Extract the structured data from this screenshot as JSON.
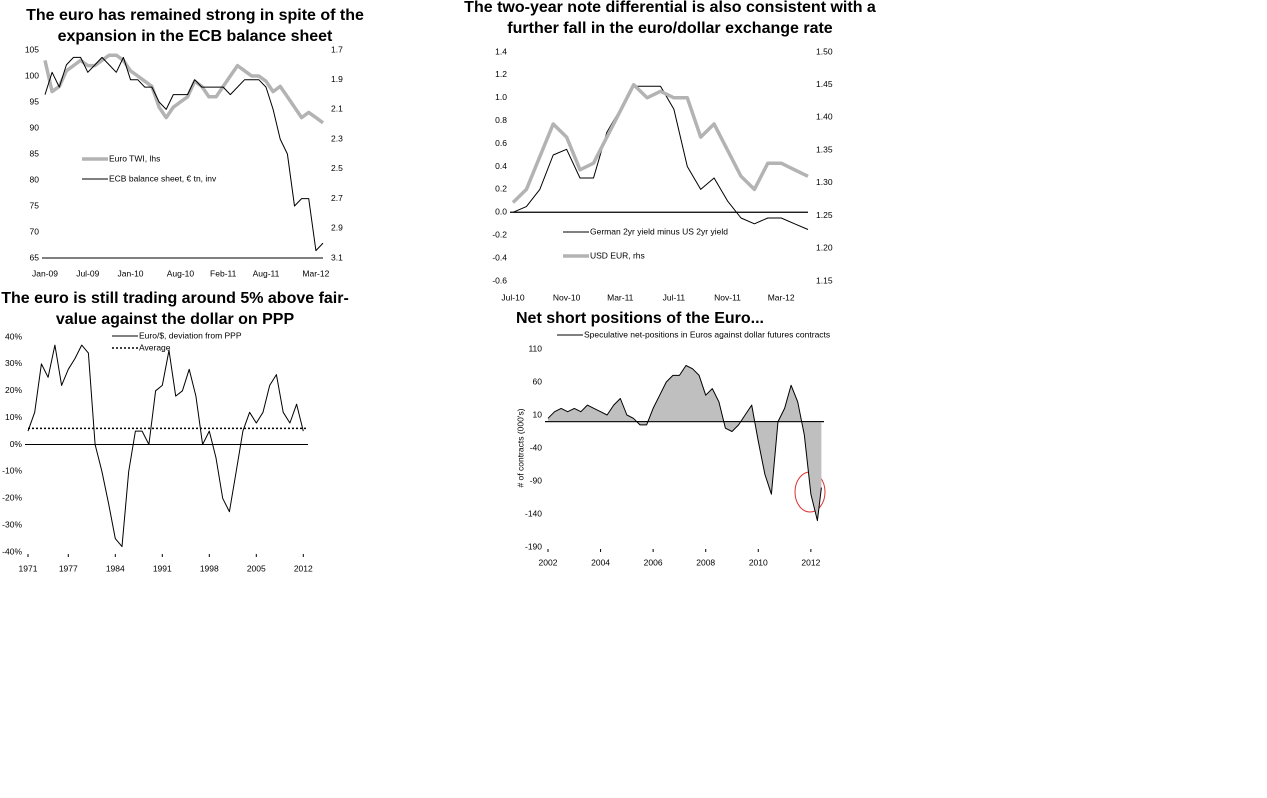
{
  "chart_data": [
    {
      "type": "line",
      "title": "The euro has remained strong in spite of the expansion in the ECB balance sheet",
      "x": [
        "Jan-09",
        "Feb-09",
        "Mar-09",
        "Apr-09",
        "May-09",
        "Jun-09",
        "Jul-09",
        "Aug-09",
        "Sep-09",
        "Oct-09",
        "Nov-09",
        "Dec-09",
        "Jan-10",
        "Feb-10",
        "Mar-10",
        "Apr-10",
        "May-10",
        "Jun-10",
        "Jul-10",
        "Aug-10",
        "Sep-10",
        "Oct-10",
        "Nov-10",
        "Dec-10",
        "Jan-11",
        "Feb-11",
        "Mar-11",
        "Apr-11",
        "May-11",
        "Jun-11",
        "Jul-11",
        "Aug-11",
        "Sep-11",
        "Oct-11",
        "Nov-11",
        "Dec-11",
        "Jan-12",
        "Feb-12",
        "Mar-12",
        "Apr-12"
      ],
      "xticks": [
        "Jan-09",
        "Jul-09",
        "Jan-10",
        "Aug-10",
        "Feb-11",
        "Aug-11",
        "Mar-12"
      ],
      "ylim": [
        65,
        105
      ],
      "yticks": [
        65,
        70,
        75,
        80,
        85,
        90,
        95,
        100,
        105
      ],
      "y2lim": [
        3.1,
        1.7
      ],
      "y2ticks": [
        3.1,
        2.9,
        2.7,
        2.5,
        2.3,
        2.1,
        1.9,
        1.7
      ],
      "series": [
        {
          "name": "Euro TWI, lhs",
          "color": "#b3b3b3",
          "width": 3.5,
          "values": [
            103,
            97,
            98,
            101,
            102,
            103,
            102,
            102,
            103,
            104,
            104,
            103,
            101,
            100,
            99,
            98,
            94,
            92,
            94,
            95,
            96,
            99,
            98,
            96,
            96,
            98,
            100,
            102,
            101,
            100,
            100,
            99,
            97,
            98,
            96,
            94,
            92,
            93,
            92,
            91
          ]
        },
        {
          "name": "ECB balance sheet, € tn, inv",
          "color": "#000000",
          "width": 1,
          "axis": "y2",
          "values": [
            2.0,
            1.85,
            1.95,
            1.8,
            1.75,
            1.75,
            1.85,
            1.8,
            1.75,
            1.8,
            1.85,
            1.75,
            1.9,
            1.9,
            1.95,
            1.95,
            2.05,
            2.1,
            2.0,
            2.0,
            2.0,
            1.9,
            1.95,
            1.95,
            1.95,
            1.95,
            2.0,
            1.95,
            1.9,
            1.9,
            1.9,
            1.95,
            2.1,
            2.3,
            2.4,
            2.75,
            2.7,
            2.7,
            3.05,
            3.0
          ]
        }
      ]
    },
    {
      "type": "line",
      "title": "The two-year note differential is also consistent with a further fall in the euro/dollar exchange rate",
      "x": [
        "Jul-10",
        "Aug-10",
        "Sep-10",
        "Oct-10",
        "Nov-10",
        "Dec-10",
        "Jan-11",
        "Feb-11",
        "Mar-11",
        "Apr-11",
        "May-11",
        "Jun-11",
        "Jul-11",
        "Aug-11",
        "Sep-11",
        "Oct-11",
        "Nov-11",
        "Dec-11",
        "Jan-12",
        "Feb-12",
        "Mar-12",
        "Apr-12",
        "May-12"
      ],
      "xticks": [
        "Jul-10",
        "Nov-10",
        "Mar-11",
        "Jul-11",
        "Nov-11",
        "Mar-12"
      ],
      "ylim": [
        -0.6,
        1.4
      ],
      "yticks": [
        1.4,
        1.2,
        {
          "value": 1,
          "label": "1.0"
        },
        0.8,
        0.6,
        0.4,
        0.2,
        {
          "value": 0,
          "label": "0.0"
        },
        -0.2,
        -0.4,
        -0.6
      ],
      "y2lim": [
        1.15,
        1.5
      ],
      "y2ticks": [
        {
          "value": 1.5,
          "label": "1.50"
        },
        1.45,
        {
          "value": 1.4,
          "label": "1.40"
        },
        1.35,
        {
          "value": 1.3,
          "label": "1.30"
        },
        1.25,
        {
          "value": 1.2,
          "label": "1.20"
        },
        1.15
      ],
      "series": [
        {
          "name": "German 2yr yield minus US 2yr yield",
          "color": "#000000",
          "width": 1,
          "values": [
            0.0,
            0.05,
            0.2,
            0.5,
            0.55,
            0.3,
            0.3,
            0.7,
            0.9,
            1.1,
            1.1,
            1.1,
            0.9,
            0.4,
            0.2,
            0.3,
            0.1,
            -0.05,
            -0.1,
            -0.05,
            -0.05,
            -0.1,
            -0.15
          ]
        },
        {
          "name": "USD EUR, rhs",
          "color": "#b3b3b3",
          "width": 3.5,
          "axis": "y2",
          "values": [
            1.27,
            1.29,
            1.34,
            1.39,
            1.37,
            1.32,
            1.33,
            1.37,
            1.41,
            1.45,
            1.43,
            1.44,
            1.43,
            1.43,
            1.37,
            1.39,
            1.35,
            1.31,
            1.29,
            1.33,
            1.33,
            1.32,
            1.31
          ]
        }
      ]
    },
    {
      "type": "line",
      "title": "The euro is still trading around 5% above fair-value against the dollar on PPP",
      "x": [
        1971,
        1972,
        1973,
        1974,
        1975,
        1976,
        1977,
        1978,
        1979,
        1980,
        1981,
        1982,
        1983,
        1984,
        1985,
        1986,
        1987,
        1988,
        1989,
        1990,
        1991,
        1992,
        1993,
        1994,
        1995,
        1996,
        1997,
        1998,
        1999,
        2000,
        2001,
        2002,
        2003,
        2004,
        2005,
        2006,
        2007,
        2008,
        2009,
        2010,
        2011,
        2012
      ],
      "xlim": [
        1971,
        2012.7
      ],
      "xticks": [
        1971,
        1977,
        1984,
        1991,
        1998,
        2005,
        2012
      ],
      "ylim": [
        -40,
        40
      ],
      "yticks": [
        {
          "value": 40,
          "label": "40%"
        },
        {
          "value": 30,
          "label": "30%"
        },
        {
          "value": 20,
          "label": "20%"
        },
        {
          "value": 10,
          "label": "10%"
        },
        {
          "value": 0,
          "label": "0%"
        },
        {
          "value": -10,
          "label": "-10%"
        },
        {
          "value": -20,
          "label": "-20%"
        },
        {
          "value": -30,
          "label": "-30%"
        },
        {
          "value": -40,
          "label": "-40%"
        }
      ],
      "series": [
        {
          "name": "Euro/$, deviation from PPP",
          "color": "#000000",
          "width": 1,
          "values": [
            5,
            12,
            30,
            25,
            37,
            22,
            28,
            32,
            37,
            34,
            0,
            -10,
            -22,
            -35,
            -38,
            -10,
            5,
            5,
            0,
            20,
            22,
            35,
            18,
            20,
            28,
            18,
            0,
            5,
            -5,
            -20,
            -25,
            -10,
            5,
            12,
            8,
            12,
            22,
            26,
            12,
            8,
            15,
            5
          ]
        }
      ],
      "reference_lines": [
        {
          "name": "Average",
          "value": 6,
          "color": "#000000"
        }
      ]
    },
    {
      "type": "area",
      "title": "Net short positions of the Euro...",
      "y_label": "# of contracts (000's)",
      "x": [
        2002,
        2002.25,
        2002.5,
        2002.75,
        2003,
        2003.25,
        2003.5,
        2003.75,
        2004,
        2004.25,
        2004.5,
        2004.75,
        2005,
        2005.25,
        2005.5,
        2005.75,
        2006,
        2006.25,
        2006.5,
        2006.75,
        2007,
        2007.25,
        2007.5,
        2007.75,
        2008,
        2008.25,
        2008.5,
        2008.75,
        2009,
        2009.25,
        2009.5,
        2009.75,
        2010,
        2010.25,
        2010.5,
        2010.75,
        2011,
        2011.25,
        2011.5,
        2011.75,
        2012,
        2012.25,
        2012.4
      ],
      "xlim": [
        2002,
        2012.5
      ],
      "xticks": [
        2002,
        2004,
        2006,
        2008,
        2010,
        2012
      ],
      "ylim": [
        -190,
        110
      ],
      "yticks": [
        110,
        60,
        10,
        -40,
        -90,
        -140,
        -190
      ],
      "series": [
        {
          "name": "Speculative net-positions in Euros against dollar futures contracts",
          "color": "#000000",
          "fill": "#bfbfbf",
          "width": 1,
          "values": [
            5,
            15,
            20,
            15,
            20,
            15,
            25,
            20,
            15,
            10,
            25,
            35,
            10,
            5,
            -5,
            -5,
            20,
            40,
            60,
            70,
            70,
            85,
            80,
            70,
            40,
            50,
            30,
            -10,
            -15,
            -5,
            10,
            25,
            -30,
            -80,
            -110,
            0,
            20,
            55,
            30,
            -20,
            -110,
            -150,
            -100
          ]
        }
      ]
    }
  ]
}
